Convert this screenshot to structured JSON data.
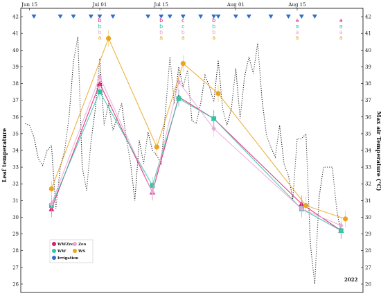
{
  "chart_data": {
    "type": "line",
    "year_label": "2022",
    "ylabel_left": "Leaf temperature",
    "ylabel_right": "Max air Temperature (°C)",
    "ylim": [
      25.5,
      42.5
    ],
    "y_ticks": [
      26,
      27,
      28,
      29,
      30,
      31,
      32,
      33,
      34,
      35,
      36,
      37,
      38,
      39,
      40,
      41,
      42
    ],
    "x_ticks": [
      {
        "label": "Jun 15",
        "date": "2022-06-15"
      },
      {
        "label": "Jul 01",
        "date": "2022-07-01"
      },
      {
        "label": "Jul 15",
        "date": "2022-07-15"
      },
      {
        "label": "Aug 01",
        "date": "2022-08-01"
      },
      {
        "label": "Aug 15",
        "date": "2022-08-15"
      }
    ],
    "xlim": [
      "2022-06-13",
      "2022-08-30"
    ],
    "series": [
      {
        "name": "WWZeo",
        "color": "#d81b74",
        "marker": "triangle",
        "x": [
          "2022-06-20",
          "2022-07-01",
          "2022-07-13",
          "2022-07-19",
          "2022-07-27",
          "2022-08-16",
          "2022-08-25"
        ],
        "y": [
          30.5,
          38.0,
          31.5,
          37.2,
          35.9,
          30.8,
          29.2
        ]
      },
      {
        "name": "WW",
        "color": "#2fc4a3",
        "marker": "square",
        "x": [
          "2022-06-20",
          "2022-07-01",
          "2022-07-13",
          "2022-07-19",
          "2022-07-27",
          "2022-08-16",
          "2022-08-25"
        ],
        "y": [
          30.7,
          37.5,
          31.9,
          37.1,
          35.9,
          30.5,
          29.2
        ]
      },
      {
        "name": "Zeo",
        "color": "#e9a7d6",
        "marker": "diamond",
        "x": [
          "2022-06-20",
          "2022-07-01",
          "2022-07-13",
          "2022-07-19",
          "2022-07-27",
          "2022-08-16",
          "2022-08-25"
        ],
        "y": [
          30.8,
          38.4,
          31.5,
          38.1,
          35.3,
          30.5,
          29.5
        ]
      },
      {
        "name": "WS",
        "color": "#eaa51f",
        "marker": "circle",
        "x": [
          "2022-06-20",
          "2022-07-03",
          "2022-07-14",
          "2022-07-20",
          "2022-07-28",
          "2022-08-17",
          "2022-08-26"
        ],
        "y": [
          31.7,
          40.7,
          34.2,
          39.2,
          37.4,
          30.7,
          29.9
        ]
      }
    ],
    "max_air_temperature": {
      "style": "dotted",
      "color": "#222222",
      "x": [
        "2022-06-14",
        "2022-06-15",
        "2022-06-16",
        "2022-06-17",
        "2022-06-18",
        "2022-06-19",
        "2022-06-20",
        "2022-06-21",
        "2022-06-22",
        "2022-06-23",
        "2022-06-24",
        "2022-06-25",
        "2022-06-26",
        "2022-06-27",
        "2022-06-28",
        "2022-06-29",
        "2022-06-30",
        "2022-07-01",
        "2022-07-02",
        "2022-07-03",
        "2022-07-04",
        "2022-07-05",
        "2022-07-06",
        "2022-07-07",
        "2022-07-08",
        "2022-07-09",
        "2022-07-10",
        "2022-07-11",
        "2022-07-12",
        "2022-07-13",
        "2022-07-14",
        "2022-07-15",
        "2022-07-16",
        "2022-07-17",
        "2022-07-18",
        "2022-07-19",
        "2022-07-20",
        "2022-07-21",
        "2022-07-22",
        "2022-07-23",
        "2022-07-24",
        "2022-07-25",
        "2022-07-26",
        "2022-07-27",
        "2022-07-28",
        "2022-07-29",
        "2022-07-30",
        "2022-07-31",
        "2022-08-01",
        "2022-08-02",
        "2022-08-03",
        "2022-08-04",
        "2022-08-05",
        "2022-08-06",
        "2022-08-07",
        "2022-08-08",
        "2022-08-09",
        "2022-08-10",
        "2022-08-11",
        "2022-08-12",
        "2022-08-13",
        "2022-08-14",
        "2022-08-15",
        "2022-08-16",
        "2022-08-17",
        "2022-08-18",
        "2022-08-19",
        "2022-08-20",
        "2022-08-21",
        "2022-08-22",
        "2022-08-23",
        "2022-08-24",
        "2022-08-25"
      ],
      "y": [
        35.6,
        35.5,
        34.8,
        33.5,
        33.1,
        34.0,
        34.3,
        30.5,
        33.0,
        34.0,
        36.0,
        39.3,
        40.8,
        33.0,
        31.6,
        34.5,
        36.5,
        39.5,
        35.5,
        36.8,
        35.2,
        36.0,
        36.8,
        34.8,
        33.3,
        31.0,
        34.6,
        33.2,
        35.1,
        34.0,
        33.7,
        33.2,
        36.4,
        39.6,
        36.8,
        39.0,
        37.8,
        38.8,
        35.8,
        35.6,
        36.8,
        38.5,
        37.8,
        36.9,
        39.4,
        36.5,
        35.5,
        36.5,
        38.9,
        35.9,
        38.4,
        39.6,
        38.6,
        40.4,
        37.0,
        34.9,
        34.2,
        33.6,
        35.5,
        33.2,
        32.5,
        31.1,
        34.7,
        34.7,
        35.0,
        28.4,
        26.0,
        31.2,
        33.0,
        33.0,
        33.0,
        30.5,
        29.0
      ]
    },
    "irrigation": {
      "name": "Irrigation",
      "color": "#2d6fc9",
      "y": 42.0,
      "x": [
        "2022-06-16",
        "2022-06-22",
        "2022-06-25",
        "2022-06-29",
        "2022-07-01",
        "2022-07-04",
        "2022-07-12",
        "2022-07-15",
        "2022-07-17",
        "2022-07-20",
        "2022-07-24",
        "2022-07-27",
        "2022-07-28",
        "2022-08-01",
        "2022-08-04",
        "2022-08-09",
        "2022-08-13",
        "2022-08-16",
        "2022-08-19"
      ]
    },
    "letters": {
      "y_top": 41.8,
      "step": 0.35,
      "groups": [
        {
          "x": "2022-07-01",
          "values": [
            "b",
            "b",
            "b",
            "a"
          ]
        },
        {
          "x": "2022-07-15",
          "values": [
            "b",
            "b",
            "b",
            "a"
          ]
        },
        {
          "x": "2022-07-20",
          "values": [
            "c",
            "c",
            "b",
            "a"
          ]
        },
        {
          "x": "2022-07-27",
          "values": [
            "b",
            "b",
            "b",
            "a"
          ]
        },
        {
          "x": "2022-08-15",
          "values": [
            "a",
            "a",
            "a",
            "a"
          ]
        },
        {
          "x": "2022-08-25",
          "values": [
            "a",
            "a",
            "a",
            "a"
          ]
        }
      ]
    },
    "legend": {
      "placement": "bottom-left",
      "items": [
        {
          "label": "WWZeo",
          "color": "#d81b74"
        },
        {
          "label": "Zeo",
          "color": "#e9a7d6"
        },
        {
          "label": "WW",
          "color": "#2fc4a3"
        },
        {
          "label": "WS",
          "color": "#eaa51f"
        },
        {
          "label": "Irrigation",
          "color": "#2d6fc9"
        }
      ]
    }
  }
}
